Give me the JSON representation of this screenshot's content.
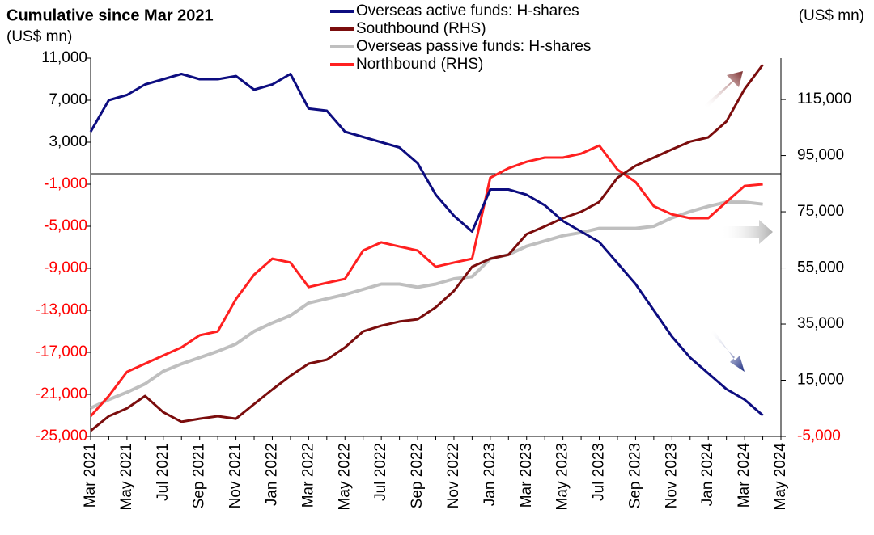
{
  "chart_data": {
    "type": "line",
    "title": "Cumulative since Mar 2021",
    "ylabel": "(US$ mn)",
    "y2label": "(US$ mn)",
    "categories": [
      "Mar 2021",
      null,
      "May 2021",
      null,
      "Jul 2021",
      null,
      "Sep 2021",
      null,
      "Nov 2021",
      null,
      "Jan 2022",
      null,
      "Mar 2022",
      null,
      "May 2022",
      null,
      "Jul 2022",
      null,
      "Sep 2022",
      null,
      "Nov 2022",
      null,
      "Jan 2023",
      null,
      "Mar 2023",
      null,
      "May 2023",
      null,
      "Jul 2023",
      null,
      "Sep 2023",
      null,
      "Nov 2023",
      null,
      "Jan 2024",
      null,
      "Mar 2024",
      null,
      "May 2024"
    ],
    "ylim": [
      -25000,
      11000
    ],
    "yticks": [
      {
        "value": 11000,
        "label": "11,000"
      },
      {
        "value": 7000,
        "label": "7,000"
      },
      {
        "value": 3000,
        "label": "3,000"
      },
      {
        "value": -1000,
        "label": "-1,000"
      },
      {
        "value": -5000,
        "label": "-5,000"
      },
      {
        "value": -9000,
        "label": "-9,000"
      },
      {
        "value": -13000,
        "label": "-13,000"
      },
      {
        "value": -17000,
        "label": "-17,000"
      },
      {
        "value": -21000,
        "label": "-21,000"
      },
      {
        "value": -25000,
        "label": "-25,000"
      }
    ],
    "y2lim": [
      -5000,
      129700
    ],
    "y2ticks": [
      {
        "value": 115000,
        "label": "115,000"
      },
      {
        "value": 95000,
        "label": "95,000"
      },
      {
        "value": 75000,
        "label": "75,000"
      },
      {
        "value": 55000,
        "label": "55,000"
      },
      {
        "value": 35000,
        "label": "35,000"
      },
      {
        "value": 15000,
        "label": "15,000"
      },
      {
        "value": -5000,
        "label": "-5,000"
      }
    ],
    "series": [
      {
        "name": "Overseas active funds: H-shares",
        "color": "#0d0d80",
        "values": [
          4000,
          7000,
          7500,
          8500,
          9000,
          9500,
          9000,
          9000,
          9300,
          8000,
          8500,
          9500,
          6200,
          6000,
          4000,
          3500,
          3000,
          2500,
          1000,
          -2000,
          -4000,
          -5500,
          -1500,
          -1500,
          -2000,
          -3000,
          -4500,
          -5500,
          -6500,
          -8500,
          -10500,
          -13000,
          -15500,
          -17500,
          -19000,
          -20500,
          -21500,
          -23000,
          null
        ]
      },
      {
        "name": "Southbound (RHS)",
        "color": "#7b0d0d",
        "axis": "y2",
        "values": [
          -3000,
          2200,
          5000,
          9400,
          3600,
          200,
          1300,
          2200,
          1300,
          6500,
          11700,
          16600,
          20900,
          22300,
          26700,
          32400,
          34400,
          35900,
          36700,
          41000,
          46800,
          55400,
          58300,
          59700,
          67000,
          69800,
          72700,
          75000,
          78500,
          87100,
          91400,
          94300,
          97200,
          100000,
          101500,
          107200,
          118700,
          127400,
          null
        ]
      },
      {
        "name": "Overseas passive funds: H-shares",
        "color": "#bfbfbf",
        "values": [
          -22300,
          -21500,
          -20800,
          -20000,
          -18800,
          -18100,
          -17500,
          -16900,
          -16200,
          -15000,
          -14200,
          -13500,
          -12300,
          -11900,
          -11500,
          -11000,
          -10500,
          -10500,
          -10800,
          -10500,
          -10000,
          -9800,
          -8100,
          -7700,
          -6900,
          -6400,
          -5900,
          -5600,
          -5200,
          -5200,
          -5200,
          -5000,
          -4200,
          -3600,
          -3100,
          -2700,
          -2700,
          -2900,
          null
        ]
      },
      {
        "name": "Northbound (RHS)",
        "color": "#ff2020",
        "axis": "y2",
        "values": [
          2200,
          9400,
          18000,
          20900,
          23800,
          26700,
          31000,
          32400,
          43900,
          52600,
          58300,
          56900,
          48200,
          49700,
          51100,
          61200,
          64100,
          62600,
          61200,
          55400,
          56900,
          58300,
          87100,
          90500,
          92800,
          94300,
          94300,
          95700,
          98600,
          90000,
          85600,
          77000,
          74100,
          72700,
          72700,
          78500,
          84200,
          84800,
          null
        ]
      }
    ]
  }
}
